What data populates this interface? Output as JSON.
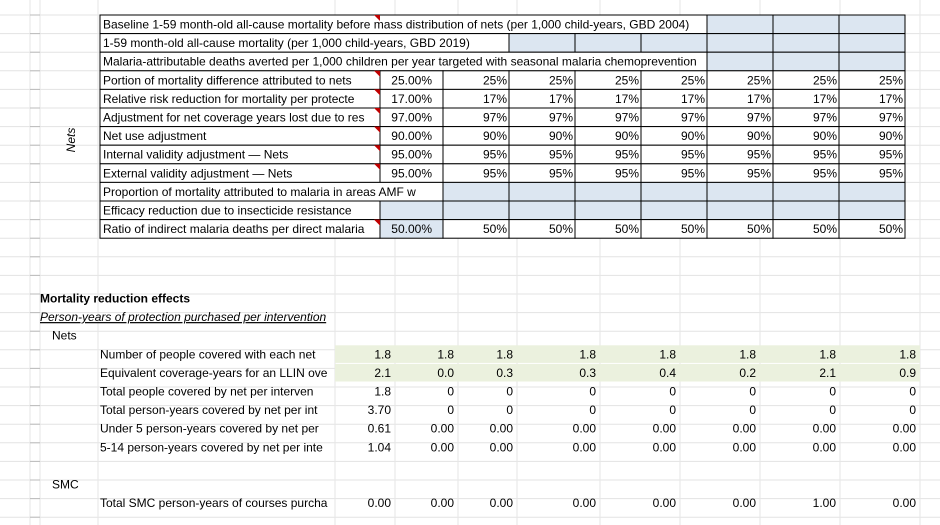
{
  "sheet": {
    "top_table": {
      "side_label": "Nets",
      "rows": [
        {
          "label": "Baseline 1-59 month-old all-cause mortality before mass distribution of nets (per 1,000 child-years, GBD 2004)",
          "cells": []
        },
        {
          "label": "1-59 month-old all-cause mortality (per 1,000 child-years, GBD 2019)",
          "cells": []
        },
        {
          "label": "Malaria-attributable deaths averted per 1,000 children per year targeted with seasonal malaria chemoprevention",
          "cells": []
        },
        {
          "label": "Portion of mortality difference attributed to nets",
          "cells": [
            "25.00%",
            "25%",
            "25%",
            "25%",
            "25%",
            "25%",
            "25%",
            "25%"
          ]
        },
        {
          "label": "Relative risk reduction for mortality per protecte",
          "cells": [
            "17.00%",
            "17%",
            "17%",
            "17%",
            "17%",
            "17%",
            "17%",
            "17%"
          ]
        },
        {
          "label": "Adjustment for net coverage years lost due to res",
          "cells": [
            "97.00%",
            "97%",
            "97%",
            "97%",
            "97%",
            "97%",
            "97%",
            "97%"
          ]
        },
        {
          "label": "Net use adjustment",
          "cells": [
            "90.00%",
            "90%",
            "90%",
            "90%",
            "90%",
            "90%",
            "90%",
            "90%"
          ]
        },
        {
          "label": "Internal validity adjustment — Nets",
          "cells": [
            "95.00%",
            "95%",
            "95%",
            "95%",
            "95%",
            "95%",
            "95%",
            "95%"
          ]
        },
        {
          "label": "External validity adjustment — Nets",
          "cells": [
            "95.00%",
            "95%",
            "95%",
            "95%",
            "95%",
            "95%",
            "95%",
            "95%"
          ]
        },
        {
          "label": "Proportion of mortality attributed to malaria in areas AMF w",
          "cells": []
        },
        {
          "label": "Efficacy reduction due to insecticide resistance",
          "cells": []
        },
        {
          "label": "Ratio of indirect malaria deaths per direct malaria",
          "cells": [
            "50.00%",
            "50%",
            "50%",
            "50%",
            "50%",
            "50%",
            "50%",
            "50%"
          ]
        }
      ]
    },
    "bottom": {
      "title": "Mortality reduction effects",
      "subtitle": "Person-years of protection purchased per intervention",
      "groups": [
        {
          "name": "Nets",
          "rows": [
            {
              "label": "Number of people covered with each net",
              "values": [
                "1.8",
                "1.8",
                "1.8",
                "1.8",
                "1.8",
                "1.8",
                "1.8",
                "1.8"
              ]
            },
            {
              "label": "Equivalent coverage-years for an LLIN ove",
              "values": [
                "2.1",
                "0.0",
                "0.3",
                "0.3",
                "0.4",
                "0.2",
                "2.1",
                "0.9"
              ]
            },
            {
              "label": "Total people covered by net per interven",
              "values": [
                "1.8",
                "0",
                "0",
                "0",
                "0",
                "0",
                "0",
                "0"
              ]
            },
            {
              "label": "Total person-years covered by net per int",
              "values": [
                "3.70",
                "0",
                "0",
                "0",
                "0",
                "0",
                "0",
                "0"
              ]
            },
            {
              "label": "Under 5 person-years covered by net per",
              "values": [
                "0.61",
                "0.00",
                "0.00",
                "0.00",
                "0.00",
                "0.00",
                "0.00",
                "0.00"
              ]
            },
            {
              "label": "5-14 person-years covered by net per inte",
              "values": [
                "1.04",
                "0.00",
                "0.00",
                "0.00",
                "0.00",
                "0.00",
                "0.00",
                "0.00"
              ]
            }
          ]
        },
        {
          "name": "SMC",
          "rows": [
            {
              "label": "Total SMC person-years of courses purcha",
              "values": [
                "0.00",
                "0.00",
                "0.00",
                "0.00",
                "0.00",
                "0.00",
                "1.00",
                "0.00"
              ]
            }
          ]
        }
      ]
    }
  }
}
